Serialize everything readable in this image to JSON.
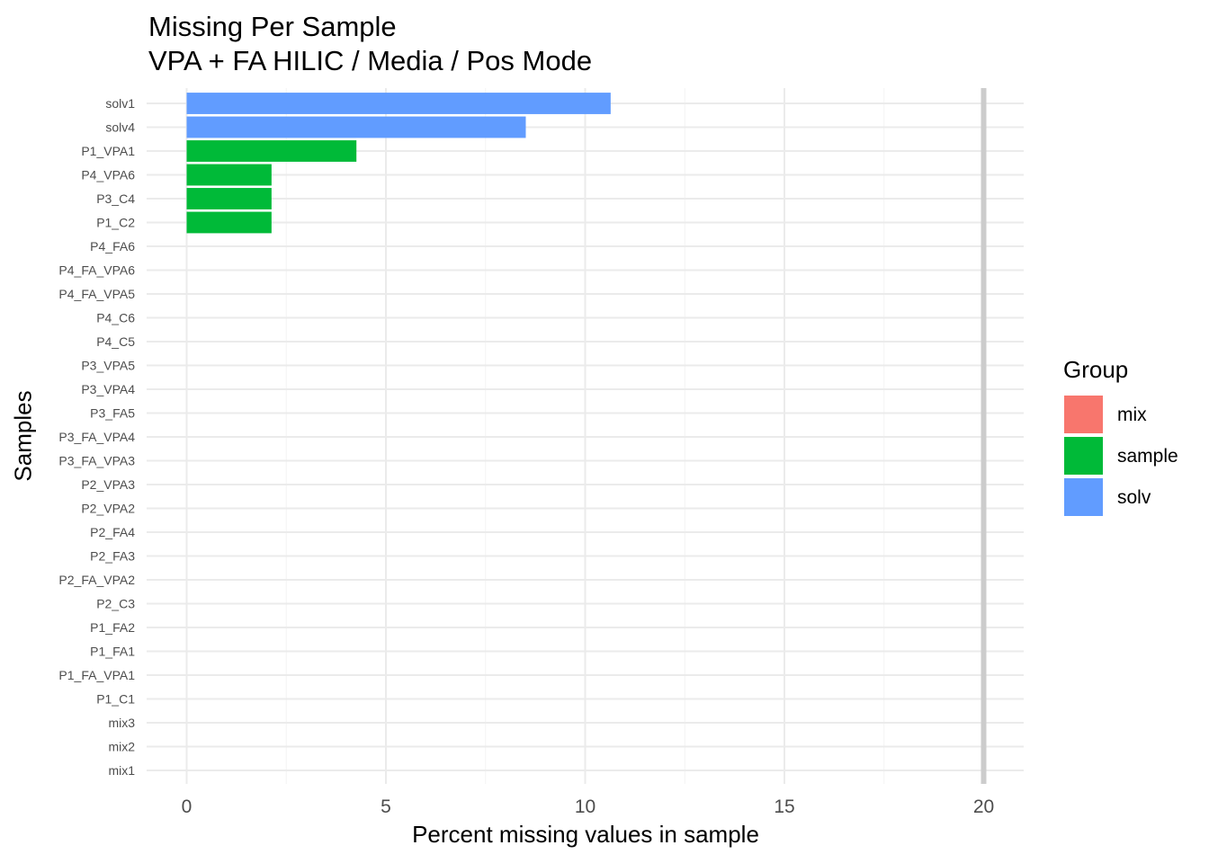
{
  "chart_data": {
    "type": "bar",
    "orientation": "horizontal",
    "title": "Missing Per Sample",
    "subtitle": "VPA + FA HILIC / Media / Pos Mode",
    "xlabel": "Percent missing values in sample",
    "ylabel": "Samples",
    "xlim": [
      -1,
      21
    ],
    "xticks": [
      "0",
      "5",
      "10",
      "15",
      "20"
    ],
    "reference_line": 20,
    "reference_line_color": "#cccccc",
    "grid": true,
    "legend_position": "right",
    "legend": {
      "title": "Group",
      "entries": [
        {
          "label": "mix",
          "color": "#F8766D"
        },
        {
          "label": "sample",
          "color": "#00BA38"
        },
        {
          "label": "solv",
          "color": "#619CFF"
        }
      ]
    },
    "categories": [
      "solv1",
      "solv4",
      "P1_VPA1",
      "P4_VPA6",
      "P3_C4",
      "P1_C2",
      "P4_FA6",
      "P4_FA_VPA6",
      "P4_FA_VPA5",
      "P4_C6",
      "P4_C5",
      "P3_VPA5",
      "P3_VPA4",
      "P3_FA5",
      "P3_FA_VPA4",
      "P3_FA_VPA3",
      "P2_VPA3",
      "P2_VPA2",
      "P2_FA4",
      "P2_FA3",
      "P2_FA_VPA2",
      "P2_C3",
      "P1_FA2",
      "P1_FA1",
      "P1_FA_VPA1",
      "P1_C1",
      "mix3",
      "mix2",
      "mix1"
    ],
    "values": [
      10.64,
      8.51,
      4.26,
      2.13,
      2.13,
      2.13,
      0,
      0,
      0,
      0,
      0,
      0,
      0,
      0,
      0,
      0,
      0,
      0,
      0,
      0,
      0,
      0,
      0,
      0,
      0,
      0,
      0,
      0,
      0
    ],
    "groups": [
      "solv",
      "solv",
      "sample",
      "sample",
      "sample",
      "sample",
      "sample",
      "sample",
      "sample",
      "sample",
      "sample",
      "sample",
      "sample",
      "sample",
      "sample",
      "sample",
      "sample",
      "sample",
      "sample",
      "sample",
      "sample",
      "sample",
      "sample",
      "sample",
      "sample",
      "sample",
      "mix",
      "mix",
      "mix"
    ]
  }
}
